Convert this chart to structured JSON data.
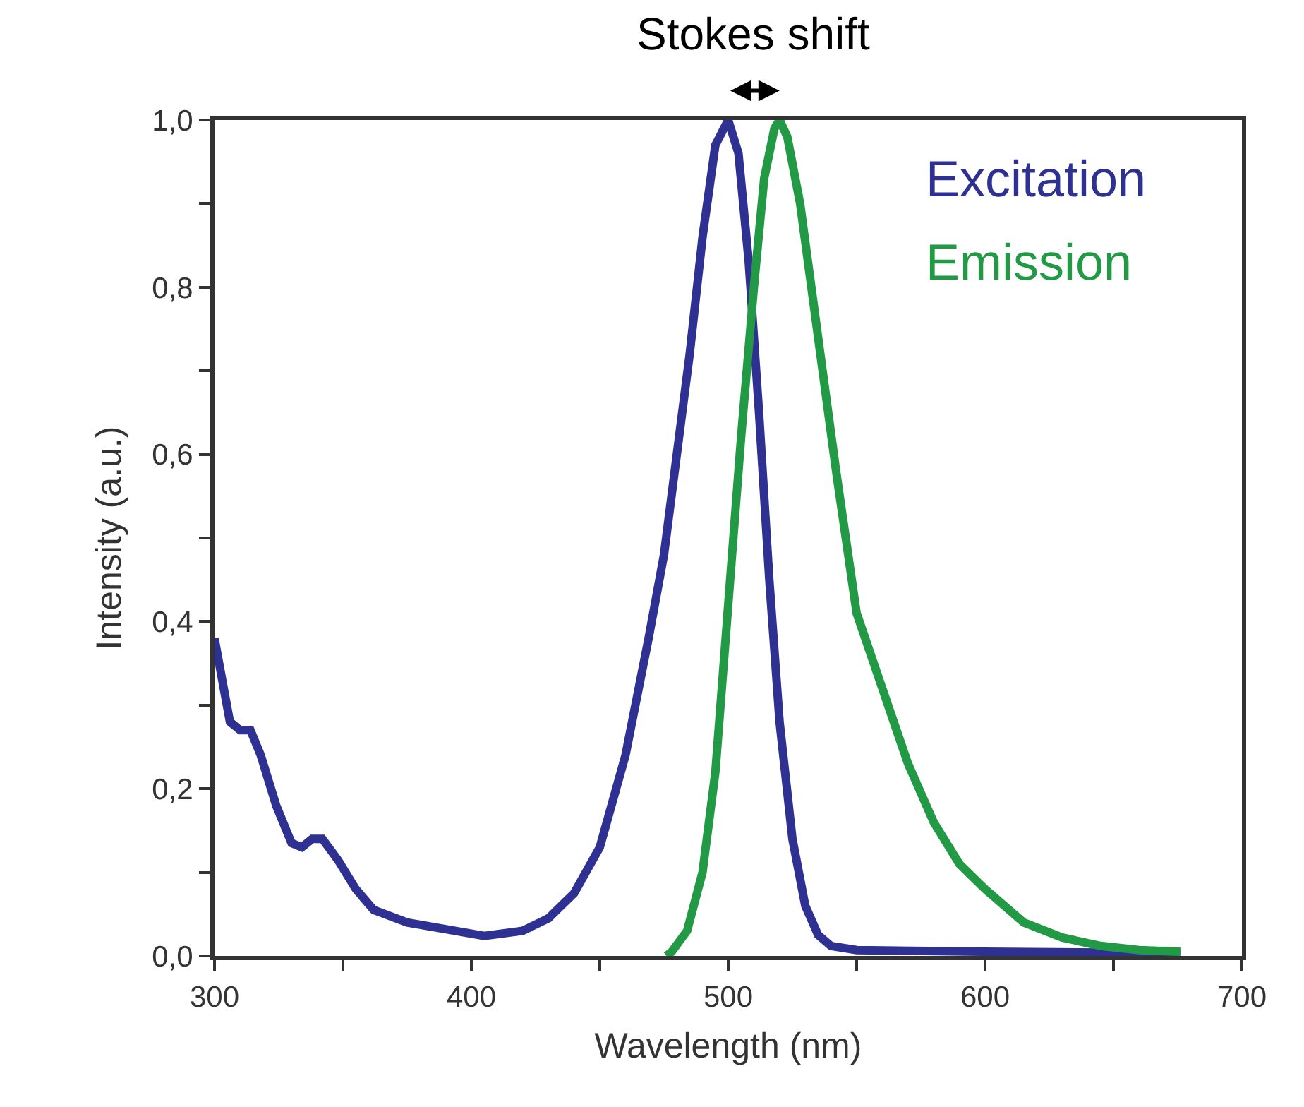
{
  "chart_data": {
    "type": "line",
    "xlabel": "Wavelength (nm)",
    "ylabel": "Intensity (a.u.)",
    "annotations": [
      "Stokes shift"
    ],
    "xlim": [
      300,
      700
    ],
    "ylim": [
      0,
      1.0
    ],
    "xticks": [
      300,
      {
        "value": 350,
        "label": null
      },
      400,
      {
        "value": 450,
        "label": null
      },
      500,
      {
        "value": 550,
        "label": null
      },
      600,
      {
        "value": 650,
        "label": null
      },
      700
    ],
    "yticks": [
      {
        "value": 0,
        "label": "0,0"
      },
      {
        "value": 0.1,
        "label": null
      },
      {
        "value": 0.2,
        "label": "0,2"
      },
      {
        "value": 0.3,
        "label": null
      },
      {
        "value": 0.4,
        "label": "0,4"
      },
      {
        "value": 0.5,
        "label": null
      },
      {
        "value": 0.6,
        "label": "0,6"
      },
      {
        "value": 0.7,
        "label": null
      },
      {
        "value": 0.8,
        "label": "0,8"
      },
      {
        "value": 0.9,
        "label": null
      },
      {
        "value": 1.0,
        "label": "1,0"
      }
    ],
    "legend": false,
    "marker": "none",
    "line_style": "solid",
    "series": [
      {
        "name": "Excitation",
        "color": "#2e3192",
        "x": [
          300,
          303,
          306,
          310,
          314,
          318,
          324,
          330,
          334,
          338,
          342,
          348,
          355,
          362,
          375,
          390,
          405,
          420,
          430,
          440,
          450,
          460,
          469,
          475,
          480,
          485,
          490,
          495,
          500,
          504,
          508,
          512,
          516,
          520,
          525,
          530,
          535,
          540,
          550,
          600,
          650,
          676
        ],
        "values": [
          0.38,
          0.33,
          0.28,
          0.27,
          0.27,
          0.24,
          0.18,
          0.135,
          0.13,
          0.14,
          0.14,
          0.115,
          0.08,
          0.055,
          0.04,
          0.032,
          0.024,
          0.03,
          0.045,
          0.075,
          0.13,
          0.24,
          0.38,
          0.48,
          0.6,
          0.72,
          0.86,
          0.97,
          1.0,
          0.96,
          0.83,
          0.65,
          0.45,
          0.28,
          0.14,
          0.06,
          0.025,
          0.012,
          0.007,
          0.005,
          0.004,
          0.003
        ]
      },
      {
        "name": "Emission",
        "color": "#229944",
        "x": [
          476,
          478,
          484,
          490,
          495,
          500,
          505,
          510,
          514,
          518,
          520,
          523,
          528,
          535,
          542,
          550,
          560,
          570,
          580,
          590,
          600,
          615,
          630,
          645,
          660,
          676
        ],
        "values": [
          0.0,
          0.005,
          0.03,
          0.1,
          0.22,
          0.42,
          0.62,
          0.8,
          0.93,
          0.99,
          1.0,
          0.98,
          0.9,
          0.74,
          0.58,
          0.41,
          0.32,
          0.23,
          0.16,
          0.11,
          0.08,
          0.04,
          0.022,
          0.012,
          0.007,
          0.005
        ]
      }
    ]
  }
}
